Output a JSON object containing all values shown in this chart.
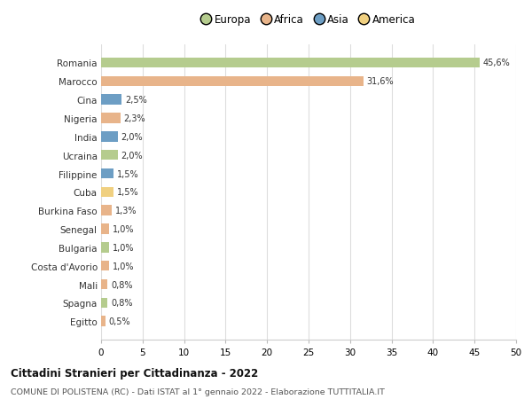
{
  "countries": [
    "Romania",
    "Marocco",
    "Cina",
    "Nigeria",
    "India",
    "Ucraina",
    "Filippine",
    "Cuba",
    "Burkina Faso",
    "Senegal",
    "Bulgaria",
    "Costa d'Avorio",
    "Mali",
    "Spagna",
    "Egitto"
  ],
  "values": [
    45.6,
    31.6,
    2.5,
    2.3,
    2.0,
    2.0,
    1.5,
    1.5,
    1.3,
    1.0,
    1.0,
    1.0,
    0.8,
    0.8,
    0.5
  ],
  "labels": [
    "45,6%",
    "31,6%",
    "2,5%",
    "2,3%",
    "2,0%",
    "2,0%",
    "1,5%",
    "1,5%",
    "1,3%",
    "1,0%",
    "1,0%",
    "1,0%",
    "0,8%",
    "0,8%",
    "0,5%"
  ],
  "continents": [
    "Europa",
    "Africa",
    "Asia",
    "Africa",
    "Asia",
    "Europa",
    "Asia",
    "America",
    "Africa",
    "Africa",
    "Europa",
    "Africa",
    "Africa",
    "Europa",
    "Africa"
  ],
  "continent_colors": {
    "Europa": "#b5cc8e",
    "Africa": "#e8b48a",
    "Asia": "#6d9ec4",
    "America": "#f0d080"
  },
  "legend_order": [
    "Europa",
    "Africa",
    "Asia",
    "America"
  ],
  "legend_colors": [
    "#b5cc8e",
    "#e8b48a",
    "#6d9ec4",
    "#f0d080"
  ],
  "title": "Cittadini Stranieri per Cittadinanza - 2022",
  "subtitle": "COMUNE DI POLISTENA (RC) - Dati ISTAT al 1° gennaio 2022 - Elaborazione TUTTITALIA.IT",
  "xlim": [
    0,
    50
  ],
  "xticks": [
    0,
    5,
    10,
    15,
    20,
    25,
    30,
    35,
    40,
    45,
    50
  ],
  "bg_color": "#ffffff",
  "grid_color": "#dddddd",
  "bar_height": 0.55
}
